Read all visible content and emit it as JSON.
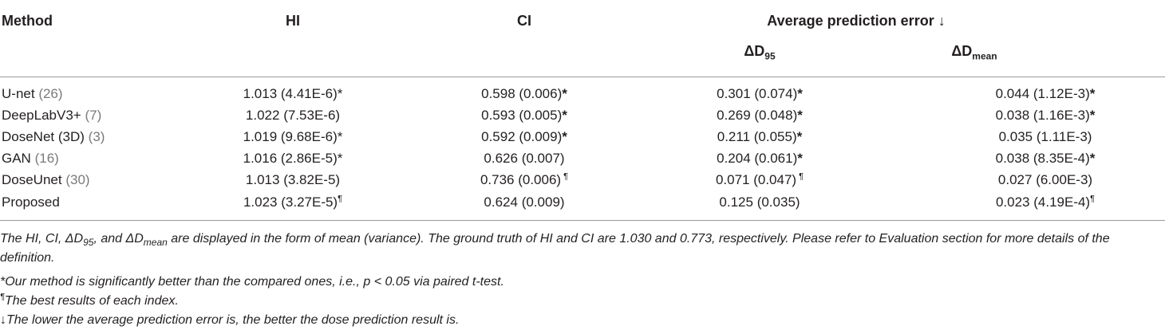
{
  "table": {
    "headers": {
      "method": "Method",
      "hi": "HI",
      "ci": "CI",
      "ape": "Average prediction error ↓",
      "d95_base": "ΔD",
      "d95_sub": "95",
      "dmean_base": "ΔD",
      "dmean_sub": "mean"
    },
    "rows": [
      {
        "name": "U-net",
        "ref": "(26)",
        "hi": "1.013 (4.41E-6)",
        "hi_mark": "*",
        "ci": "0.598 (0.006)",
        "ci_mark": "*",
        "d95": "0.301 (0.074)",
        "d95_mark": "*",
        "dmean": "0.044 (1.12E-3)",
        "dmean_mark": "*"
      },
      {
        "name": "DeepLabV3+",
        "ref": "(7)",
        "hi": "1.022 (7.53E-6)",
        "hi_mark": "",
        "ci": "0.593 (0.005)",
        "ci_mark": "*",
        "d95": "0.269 (0.048)",
        "d95_mark": "*",
        "dmean": "0.038 (1.16E-3)",
        "dmean_mark": "*"
      },
      {
        "name": "DoseNet (3D)",
        "ref": "(3)",
        "hi": "1.019 (9.68E-6)",
        "hi_mark": "*",
        "ci": "0.592 (0.009)",
        "ci_mark": "*",
        "d95": "0.211 (0.055)",
        "d95_mark": "*",
        "dmean": "0.035 (1.11E-3)",
        "dmean_mark": ""
      },
      {
        "name": "GAN",
        "ref": "(16)",
        "hi": "1.016 (2.86E-5)",
        "hi_mark": "*",
        "ci": "0.626 (0.007)",
        "ci_mark": "",
        "d95": "0.204 (0.061)",
        "d95_mark": "*",
        "dmean": "0.038 (8.35E-4)",
        "dmean_mark": "*"
      },
      {
        "name": "DoseUnet",
        "ref": "(30)",
        "hi": "1.013 (3.82E-5)",
        "hi_mark": "",
        "ci": "0.736 (0.006)",
        "ci_mark": " ¶",
        "d95": "0.071 (0.047)",
        "d95_mark": " ¶",
        "dmean": "0.027 (6.00E-3)",
        "dmean_mark": ""
      },
      {
        "name": "Proposed",
        "ref": "",
        "hi": "1.023 (3.27E-5)",
        "hi_mark": "¶",
        "ci": "0.624 (0.009)",
        "ci_mark": "",
        "d95": "0.125 (0.035)",
        "d95_mark": "",
        "dmean": "0.023 (4.19E-4)",
        "dmean_mark": "¶"
      }
    ]
  },
  "footnotes": {
    "note1_a": "The HI, CI, ",
    "note1_d": "ΔD",
    "note1_sub95": "95",
    "note1_b": ", and ",
    "note1_submean": "mean",
    "note1_c": " are displayed in the form of mean (variance). The ground truth of HI and CI are 1.030 and 0.773, respectively. Please refer to Evaluation section for more details of the definition.",
    "note2": "*Our method is significantly better than the compared ones, i.e., p < 0.05 via paired t-test.",
    "note3_mark": "¶",
    "note3": "The best results of each index.",
    "note4": "↓The lower the average prediction error is, the better the dose prediction result is."
  }
}
